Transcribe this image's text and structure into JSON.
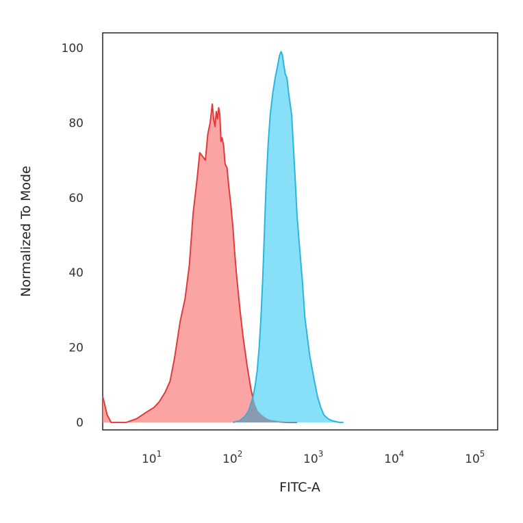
{
  "chart_data": {
    "type": "area",
    "xlabel": "FITC-A",
    "ylabel": "Normalized To Mode",
    "x_scale": "log",
    "xlim": [
      2.2,
      170000
    ],
    "ylim": [
      -2,
      104
    ],
    "x_ticks": [
      {
        "value": 10,
        "base": "10",
        "exp": "1"
      },
      {
        "value": 100,
        "base": "10",
        "exp": "2"
      },
      {
        "value": 1000,
        "base": "10",
        "exp": "3"
      },
      {
        "value": 10000,
        "base": "10",
        "exp": "4"
      },
      {
        "value": 100000,
        "base": "10",
        "exp": "5"
      }
    ],
    "y_ticks": [
      0,
      20,
      40,
      60,
      80,
      100
    ],
    "grid": false,
    "legend": "none",
    "series": [
      {
        "color": "#e03a3a",
        "fill": "#f98a8a",
        "x": [
          2.2,
          2.5,
          2.8,
          3.1,
          3.6,
          4.3,
          5.0,
          5.8,
          6.8,
          8.0,
          9.5,
          11,
          13,
          15,
          17,
          20,
          23,
          26,
          29,
          32,
          35,
          38,
          41,
          44,
          47,
          50,
          52,
          54,
          56,
          58,
          60,
          62,
          64,
          66,
          69,
          72,
          76,
          80,
          85,
          90,
          95,
          100,
          110,
          120,
          135,
          150,
          165,
          180,
          200,
          230,
          260,
          300,
          350,
          420,
          500,
          560
        ],
        "y": [
          7,
          2,
          0,
          0,
          0,
          0,
          0.5,
          1,
          2,
          3,
          4,
          5.5,
          8,
          11,
          17,
          27,
          33,
          42,
          56,
          64,
          72,
          71,
          70,
          77,
          80,
          85,
          81,
          79,
          83,
          81,
          84,
          82,
          75,
          76,
          74,
          69,
          68,
          63,
          58,
          52,
          45,
          39,
          30,
          23,
          15,
          9,
          5,
          3,
          2,
          1,
          0.5,
          0.3,
          0.1,
          0,
          0,
          0
        ]
      },
      {
        "color": "#2ab6dc",
        "fill": "#5ad2f5",
        "x": [
          90,
          110,
          125,
          140,
          150,
          160,
          170,
          180,
          190,
          200,
          210,
          220,
          230,
          245,
          260,
          280,
          300,
          320,
          340,
          355,
          370,
          380,
          400,
          420,
          440,
          460,
          480,
          500,
          530,
          560,
          600,
          650,
          700,
          800,
          900,
          1000,
          1100,
          1200,
          1350,
          1500,
          1700,
          1900,
          2100
        ],
        "y": [
          0,
          0.5,
          1.5,
          3,
          5,
          7,
          10,
          14,
          20,
          28,
          38,
          50,
          62,
          74,
          82,
          88,
          92,
          95,
          98,
          99,
          98,
          96,
          93,
          92,
          88,
          85,
          82,
          75,
          65,
          55,
          47,
          38,
          28,
          18,
          12,
          7,
          4,
          2,
          1,
          0.5,
          0.2,
          0,
          0
        ]
      }
    ]
  }
}
